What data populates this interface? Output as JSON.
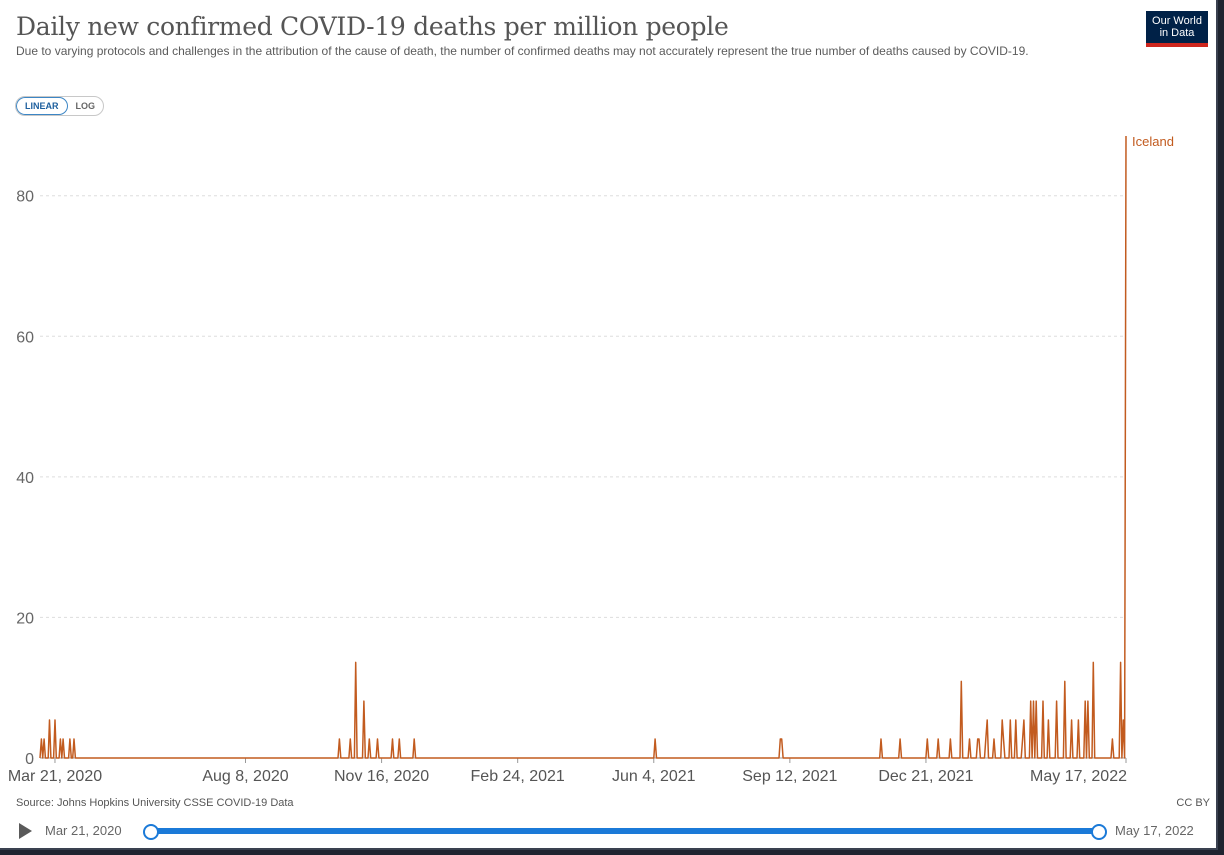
{
  "title": "Daily new confirmed COVID-19 deaths per million people",
  "subtitle": "Due to varying protocols and challenges in the attribution of the cause of death, the number of confirmed deaths may not accurately represent the true number of deaths caused by COVID-19.",
  "logo": {
    "line1": "Our World",
    "line2": "in Data"
  },
  "scale_toggle": {
    "options": [
      "LINEAR",
      "LOG"
    ],
    "selected": "LINEAR"
  },
  "source": "Source: Johns Hopkins University CSSE COVID-19 Data",
  "license": "CC BY",
  "timeline": {
    "start": "Mar 21, 2020",
    "end": "May 17, 2022"
  },
  "colors": {
    "series": "#c25b1f",
    "slider": "#1b7ad8",
    "logo_bg": "#002147",
    "logo_accent": "#ce261e"
  },
  "chart_data": {
    "type": "line",
    "title": "Daily new confirmed COVID-19 deaths per million people",
    "xlabel": "",
    "ylabel": "",
    "ylim": [
      0,
      88.5
    ],
    "grid": true,
    "y_ticks": [
      0,
      20,
      40,
      60,
      80
    ],
    "x_ticks": [
      "Mar 21, 2020",
      "Aug 8, 2020",
      "Nov 16, 2020",
      "Feb 24, 2021",
      "Jun 4, 2021",
      "Sep 12, 2021",
      "Dec 21, 2021",
      "May 17, 2022"
    ],
    "x_range": [
      "2020-03-10",
      "2022-05-17"
    ],
    "series": [
      {
        "name": "Iceland",
        "color": "#c25b1f",
        "x": [
          "2020-03-10",
          "2020-03-11",
          "2020-03-12",
          "2020-03-13",
          "2020-03-14",
          "2020-03-16",
          "2020-03-17",
          "2020-03-18",
          "2020-03-20",
          "2020-03-21",
          "2020-03-22",
          "2020-03-24",
          "2020-03-25",
          "2020-03-26",
          "2020-03-27",
          "2020-03-28",
          "2020-03-29",
          "2020-03-31",
          "2020-04-01",
          "2020-04-02",
          "2020-04-03",
          "2020-04-04",
          "2020-04-05",
          "2020-10-15",
          "2020-10-16",
          "2020-10-17",
          "2020-10-23",
          "2020-10-24",
          "2020-10-25",
          "2020-10-27",
          "2020-10-28",
          "2020-10-29",
          "2020-11-02",
          "2020-11-03",
          "2020-11-04",
          "2020-11-06",
          "2020-11-07",
          "2020-11-08",
          "2020-11-12",
          "2020-11-13",
          "2020-11-14",
          "2020-11-23",
          "2020-11-24",
          "2020-11-25",
          "2020-11-28",
          "2020-11-29",
          "2020-11-30",
          "2020-12-09",
          "2020-12-10",
          "2020-12-11",
          "2021-06-04",
          "2021-06-05",
          "2021-06-06",
          "2021-09-04",
          "2021-09-05",
          "2021-09-06",
          "2021-09-07",
          "2021-11-17",
          "2021-11-18",
          "2021-11-19",
          "2021-12-01",
          "2021-12-02",
          "2021-12-03",
          "2021-12-21",
          "2021-12-22",
          "2021-12-23",
          "2021-12-29",
          "2021-12-30",
          "2021-12-31",
          "2022-01-07",
          "2022-01-08",
          "2022-01-09",
          "2022-01-15",
          "2022-01-16",
          "2022-01-17",
          "2022-01-18",
          "2022-01-21",
          "2022-01-22",
          "2022-01-23",
          "2022-01-27",
          "2022-01-28",
          "2022-01-29",
          "2022-01-30",
          "2022-02-02",
          "2022-02-03",
          "2022-02-04",
          "2022-02-05",
          "2022-02-08",
          "2022-02-09",
          "2022-02-10",
          "2022-02-14",
          "2022-02-15",
          "2022-02-16",
          "2022-02-17",
          "2022-02-20",
          "2022-02-21",
          "2022-02-22",
          "2022-02-24",
          "2022-02-25",
          "2022-02-26",
          "2022-03-01",
          "2022-03-02",
          "2022-03-03",
          "2022-03-04",
          "2022-03-07",
          "2022-03-08",
          "2022-03-09",
          "2022-03-10",
          "2022-03-11",
          "2022-03-12",
          "2022-03-13",
          "2022-03-16",
          "2022-03-17",
          "2022-03-18",
          "2022-03-20",
          "2022-03-21",
          "2022-03-22",
          "2022-03-26",
          "2022-03-27",
          "2022-03-28",
          "2022-04-01",
          "2022-04-02",
          "2022-04-03",
          "2022-04-06",
          "2022-04-07",
          "2022-04-08",
          "2022-04-11",
          "2022-04-12",
          "2022-04-13",
          "2022-04-16",
          "2022-04-17",
          "2022-04-18",
          "2022-04-19",
          "2022-04-20",
          "2022-04-22",
          "2022-04-23",
          "2022-04-24",
          "2022-05-06",
          "2022-05-07",
          "2022-05-08",
          "2022-05-12",
          "2022-05-13",
          "2022-05-14",
          "2022-05-15",
          "2022-05-16",
          "2022-05-17"
        ],
        "y": [
          0,
          2.7,
          0,
          2.7,
          0,
          0,
          5.4,
          0,
          0,
          5.4,
          0,
          0,
          2.7,
          0,
          2.7,
          0,
          0,
          0,
          2.7,
          0,
          0,
          2.7,
          0,
          0,
          2.7,
          0,
          0,
          2.7,
          0,
          0,
          13.6,
          0,
          0,
          8.1,
          0,
          0,
          2.7,
          0,
          0,
          2.7,
          0,
          0,
          2.7,
          0,
          0,
          2.7,
          0,
          0,
          2.7,
          0,
          0,
          2.7,
          0,
          0,
          2.7,
          2.7,
          0,
          0,
          2.7,
          0,
          0,
          2.7,
          0,
          0,
          2.7,
          0,
          0,
          2.7,
          0,
          0,
          2.7,
          0,
          0,
          10.9,
          0,
          0,
          0,
          2.7,
          0,
          0,
          2.7,
          2.7,
          0,
          0,
          2.7,
          5.4,
          0,
          0,
          2.7,
          0,
          0,
          5.4,
          2.7,
          0,
          0,
          5.4,
          0,
          0,
          5.4,
          0,
          0,
          2.7,
          5.4,
          0,
          0,
          8.1,
          0,
          8.1,
          0,
          8.1,
          0,
          0,
          8.1,
          0,
          0,
          5.4,
          0,
          0,
          8.1,
          0,
          0,
          10.9,
          0,
          0,
          5.4,
          0,
          0,
          5.4,
          0,
          0,
          8.1,
          0,
          8.1,
          0,
          0,
          13.6,
          0,
          0,
          2.7,
          0,
          0,
          13.6,
          0,
          5.4,
          0,
          88.5
        ]
      }
    ]
  }
}
